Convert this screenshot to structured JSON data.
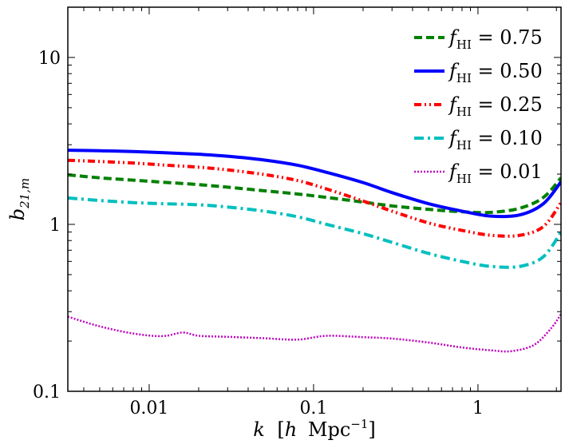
{
  "chart_data": {
    "type": "line",
    "title": "",
    "xscale": "log",
    "yscale": "log",
    "xlim": [
      0.0032,
      3.2
    ],
    "ylim": [
      0.1,
      20
    ],
    "xlabel": {
      "var": "k",
      "unit_open": "[",
      "h": "h",
      "unit": "Mpc",
      "exp": "−1",
      "unit_close": "]"
    },
    "ylabel": {
      "base": "b",
      "sub": "21,m"
    },
    "xticks": [
      {
        "value": 0.01,
        "label": "0.01"
      },
      {
        "value": 0.1,
        "label": "0.1"
      },
      {
        "value": 1,
        "label": "1"
      }
    ],
    "yticks": [
      {
        "value": 0.1,
        "label": "0.1"
      },
      {
        "value": 1,
        "label": "1"
      },
      {
        "value": 10,
        "label": "10"
      }
    ],
    "grid": false,
    "legend_position": "top-right",
    "series": [
      {
        "id": "f075",
        "legend": {
          "sym": "f",
          "sub": "HI",
          "rest": " = 0.75"
        },
        "color": "#008000",
        "style": "dashed",
        "x": [
          0.0032,
          0.005,
          0.008,
          0.012,
          0.02,
          0.03,
          0.05,
          0.08,
          0.12,
          0.2,
          0.3,
          0.5,
          0.8,
          1.2,
          1.8,
          2.5,
          3.2
        ],
        "y": [
          1.98,
          1.9,
          1.84,
          1.79,
          1.73,
          1.67,
          1.59,
          1.52,
          1.45,
          1.36,
          1.29,
          1.23,
          1.19,
          1.18,
          1.25,
          1.45,
          1.9
        ]
      },
      {
        "id": "f050",
        "legend": {
          "sym": "f",
          "sub": "HI",
          "rest": " = 0.50"
        },
        "color": "#0000ff",
        "style": "solid",
        "x": [
          0.0032,
          0.005,
          0.008,
          0.012,
          0.02,
          0.03,
          0.05,
          0.08,
          0.12,
          0.2,
          0.3,
          0.5,
          0.8,
          1.2,
          1.8,
          2.5,
          3.2
        ],
        "y": [
          2.78,
          2.76,
          2.73,
          2.69,
          2.63,
          2.56,
          2.43,
          2.26,
          2.05,
          1.78,
          1.55,
          1.33,
          1.2,
          1.12,
          1.14,
          1.33,
          1.8
        ]
      },
      {
        "id": "f025",
        "legend": {
          "sym": "f",
          "sub": "HI",
          "rest": " = 0.25"
        },
        "color": "#ff0000",
        "style": "dashdotdot",
        "x": [
          0.0032,
          0.005,
          0.008,
          0.012,
          0.02,
          0.03,
          0.05,
          0.08,
          0.12,
          0.2,
          0.3,
          0.5,
          0.8,
          1.2,
          1.8,
          2.5,
          3.2
        ],
        "y": [
          2.42,
          2.38,
          2.33,
          2.27,
          2.2,
          2.12,
          1.99,
          1.83,
          1.63,
          1.38,
          1.2,
          1.02,
          0.92,
          0.86,
          0.86,
          0.97,
          1.35
        ]
      },
      {
        "id": "f010",
        "legend": {
          "sym": "f",
          "sub": "HI",
          "rest": " = 0.10"
        },
        "color": "#00bfbf",
        "style": "dashdot",
        "x": [
          0.0032,
          0.005,
          0.008,
          0.012,
          0.02,
          0.03,
          0.05,
          0.08,
          0.12,
          0.2,
          0.3,
          0.5,
          0.8,
          1.2,
          1.8,
          2.5,
          3.2
        ],
        "y": [
          1.44,
          1.39,
          1.35,
          1.33,
          1.31,
          1.27,
          1.2,
          1.11,
          1.0,
          0.88,
          0.78,
          0.67,
          0.6,
          0.56,
          0.56,
          0.64,
          0.9
        ]
      },
      {
        "id": "f001",
        "legend": {
          "sym": "f",
          "sub": "HI",
          "rest": " = 0.01"
        },
        "color": "#bf00bf",
        "style": "dotted",
        "x": [
          0.0032,
          0.005,
          0.008,
          0.012,
          0.016,
          0.02,
          0.03,
          0.05,
          0.08,
          0.12,
          0.2,
          0.3,
          0.5,
          0.8,
          1.2,
          1.6,
          2.2,
          2.8,
          3.2
        ],
        "y": [
          0.28,
          0.245,
          0.222,
          0.214,
          0.225,
          0.215,
          0.212,
          0.208,
          0.204,
          0.215,
          0.211,
          0.207,
          0.196,
          0.183,
          0.176,
          0.174,
          0.19,
          0.24,
          0.29
        ]
      }
    ]
  }
}
